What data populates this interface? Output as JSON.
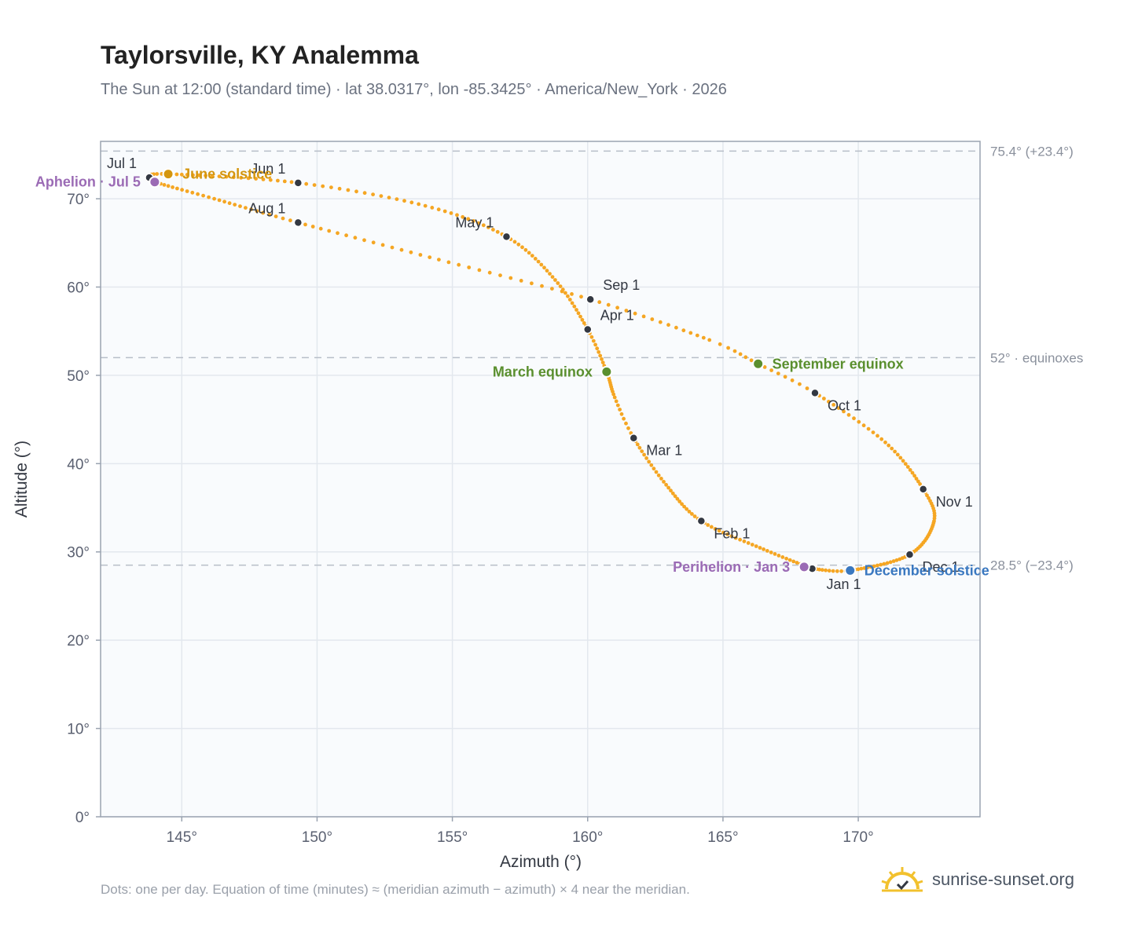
{
  "header": {
    "title": "Taylorsville, KY Analemma",
    "subtitle": "The Sun at 12:00 (standard time) · lat 38.0317°, lon -85.3425° · America/New_York · 2026"
  },
  "footer": {
    "note": "Dots: one per day. Equation of time (minutes) ≈ (meridian azimuth − azimuth) × 4 near the meridian.",
    "brand": "sunrise-sunset.org"
  },
  "colors": {
    "path": "#f5a623",
    "month_marker": "#333842",
    "solstice_june": "#d4960f",
    "solstice_december": "#3a78c0",
    "equinox": "#5a8f2e",
    "apsis": "#9b6bb5",
    "reference_line": "#b8bec8",
    "plot_bg": "#f9fbfd",
    "grid": "#e3e8ee",
    "frame": "#9aa3b0"
  },
  "chart_data": {
    "type": "scatter",
    "xlabel": "Azimuth (°)",
    "ylabel": "Altitude (°)",
    "xlim": [
      142,
      174.5
    ],
    "ylim": [
      0,
      76.5
    ],
    "xticks": [
      145,
      150,
      155,
      160,
      165,
      170
    ],
    "yticks": [
      0,
      10,
      20,
      30,
      40,
      50,
      60,
      70
    ],
    "tick_suffix": "°",
    "grid": true,
    "anchors": [
      {
        "day": 0,
        "az": 168.3,
        "alt": 28.1
      },
      {
        "day": 15,
        "az": 166.5,
        "alt": 30.3
      },
      {
        "day": 31,
        "az": 164.2,
        "alt": 33.5
      },
      {
        "day": 45,
        "az": 162.9,
        "alt": 37.6
      },
      {
        "day": 59,
        "az": 161.7,
        "alt": 42.9
      },
      {
        "day": 68,
        "az": 161.0,
        "alt": 47.5
      },
      {
        "day": 78,
        "az": 160.7,
        "alt": 50.4
      },
      {
        "day": 90,
        "az": 160.0,
        "alt": 55.2
      },
      {
        "day": 105,
        "az": 158.8,
        "alt": 60.8
      },
      {
        "day": 120,
        "az": 157.0,
        "alt": 65.7
      },
      {
        "day": 135,
        "az": 154.0,
        "alt": 69.2
      },
      {
        "day": 151,
        "az": 149.3,
        "alt": 71.8
      },
      {
        "day": 171,
        "az": 144.5,
        "alt": 72.8
      },
      {
        "day": 181,
        "az": 143.8,
        "alt": 72.4
      },
      {
        "day": 185,
        "az": 144.0,
        "alt": 71.9
      },
      {
        "day": 198,
        "az": 146.2,
        "alt": 70.0
      },
      {
        "day": 212,
        "az": 149.3,
        "alt": 67.3
      },
      {
        "day": 228,
        "az": 154.5,
        "alt": 63.1
      },
      {
        "day": 243,
        "az": 160.1,
        "alt": 58.6
      },
      {
        "day": 258,
        "az": 164.5,
        "alt": 54.0
      },
      {
        "day": 265,
        "az": 166.3,
        "alt": 51.3
      },
      {
        "day": 273,
        "az": 168.4,
        "alt": 48.0
      },
      {
        "day": 288,
        "az": 171.0,
        "alt": 42.4
      },
      {
        "day": 304,
        "az": 172.4,
        "alt": 37.1
      },
      {
        "day": 316,
        "az": 172.8,
        "alt": 33.5
      },
      {
        "day": 334,
        "az": 171.9,
        "alt": 29.7
      },
      {
        "day": 354,
        "az": 169.7,
        "alt": 27.9
      },
      {
        "day": 365,
        "az": 168.3,
        "alt": 28.1
      }
    ],
    "month_markers": [
      {
        "label": "Jan 1",
        "az": 168.3,
        "alt": 28.1,
        "label_pos": "below"
      },
      {
        "label": "Feb 1",
        "az": 164.2,
        "alt": 33.5,
        "label_pos": "below-right"
      },
      {
        "label": "Mar 1",
        "az": 161.7,
        "alt": 42.9,
        "label_pos": "below-right"
      },
      {
        "label": "Apr 1",
        "az": 160.0,
        "alt": 55.2,
        "label_pos": "above-right"
      },
      {
        "label": "May 1",
        "az": 157.0,
        "alt": 65.7,
        "label_pos": "above-left"
      },
      {
        "label": "Jun 1",
        "az": 149.3,
        "alt": 71.8,
        "label_pos": "above-left"
      },
      {
        "label": "Jul 1",
        "az": 143.8,
        "alt": 72.4,
        "label_pos": "above-left"
      },
      {
        "label": "Aug 1",
        "az": 149.3,
        "alt": 67.3,
        "label_pos": "above-left"
      },
      {
        "label": "Sep 1",
        "az": 160.1,
        "alt": 58.6,
        "label_pos": "above-right"
      },
      {
        "label": "Oct 1",
        "az": 168.4,
        "alt": 48.0,
        "label_pos": "below-right"
      },
      {
        "label": "Nov 1",
        "az": 172.4,
        "alt": 37.1,
        "label_pos": "below-right"
      },
      {
        "label": "Dec 1",
        "az": 171.9,
        "alt": 29.7,
        "label_pos": "below-right"
      }
    ],
    "special_points": [
      {
        "label": "June solstice",
        "az": 144.5,
        "alt": 72.8,
        "color_key": "solstice_june",
        "label_pos": "right"
      },
      {
        "label": "Aphelion · Jul 5",
        "az": 144.0,
        "alt": 71.9,
        "color_key": "apsis",
        "label_pos": "left"
      },
      {
        "label": "March equinox",
        "az": 160.7,
        "alt": 50.4,
        "color_key": "equinox",
        "label_pos": "left"
      },
      {
        "label": "September equinox",
        "az": 166.3,
        "alt": 51.3,
        "color_key": "equinox",
        "label_pos": "right"
      },
      {
        "label": "Perihelion · Jan 3",
        "az": 168.0,
        "alt": 28.3,
        "color_key": "apsis",
        "label_pos": "left"
      },
      {
        "label": "December solstice",
        "az": 169.7,
        "alt": 27.9,
        "color_key": "solstice_december",
        "label_pos": "right"
      }
    ],
    "reference_lines": [
      {
        "alt": 75.4,
        "label": "75.4° (+23.4°)"
      },
      {
        "alt": 52.0,
        "label": "52° · equinoxes"
      },
      {
        "alt": 28.5,
        "label": "28.5° (−23.4°)"
      }
    ]
  }
}
